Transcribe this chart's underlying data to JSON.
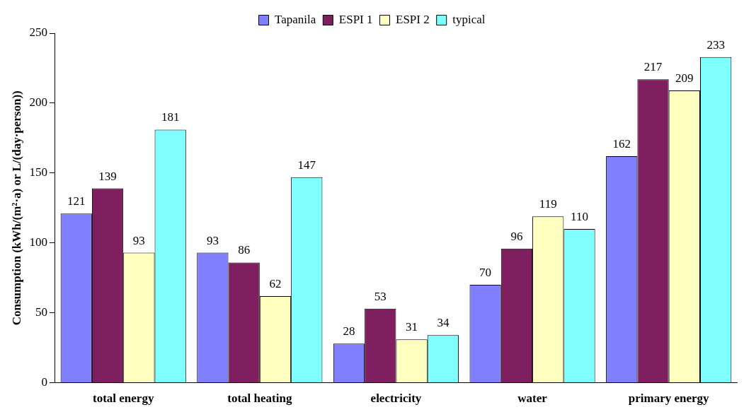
{
  "chart_data": {
    "type": "bar",
    "ylabel": "Consumption (kWh/(m²·a) or L/(day·person))",
    "categories": [
      "total energy",
      "total heating",
      "electricity",
      "water",
      "primary energy"
    ],
    "series": [
      {
        "name": "Tapanila",
        "color": "#8080ff",
        "values": [
          121,
          93,
          28,
          70,
          162
        ]
      },
      {
        "name": "ESPI 1",
        "color": "#7f1f5f",
        "values": [
          139,
          86,
          53,
          96,
          217
        ]
      },
      {
        "name": "ESPI 2",
        "color": "#ffffc0",
        "values": [
          93,
          62,
          31,
          119,
          209
        ]
      },
      {
        "name": "typical",
        "color": "#80ffff",
        "values": [
          181,
          147,
          34,
          110,
          233
        ]
      }
    ],
    "ylim": [
      0,
      250
    ],
    "yticks": [
      0,
      50,
      100,
      150,
      200,
      250
    ],
    "grid": false,
    "legend": "top",
    "data_labels": true
  }
}
